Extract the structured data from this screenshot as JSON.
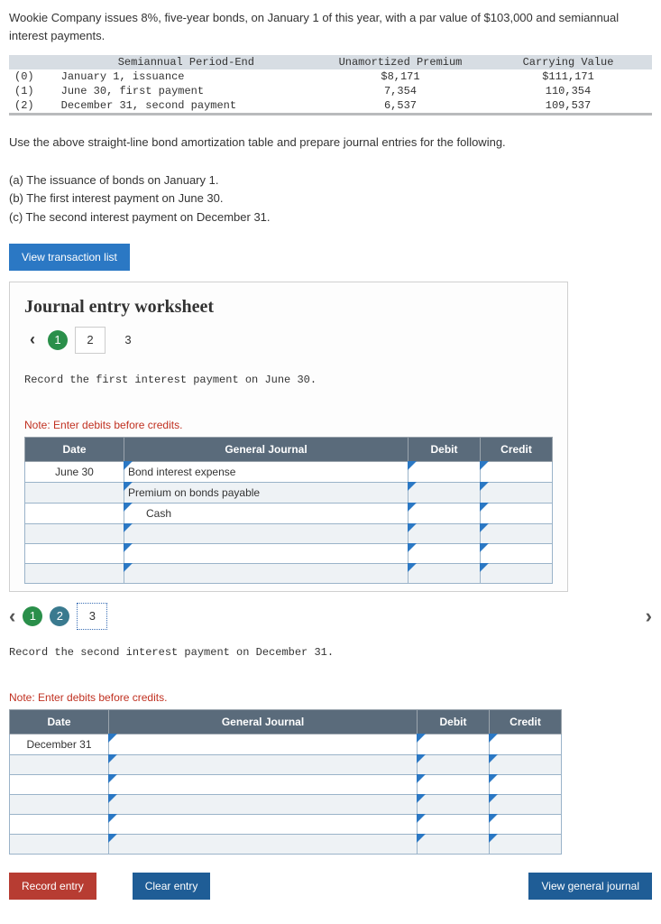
{
  "problem": {
    "text": "Wookie Company issues 8%, five-year bonds, on January 1 of this year, with a par value of $103,000 and semiannual interest payments."
  },
  "amort": {
    "headers": {
      "period": "Semiannual Period-End",
      "premium": "Unamortized Premium",
      "value": "Carrying Value"
    },
    "rows": [
      {
        "idx": "(0)",
        "period": "January 1, issuance",
        "premium": "$8,171",
        "value": "$111,171"
      },
      {
        "idx": "(1)",
        "period": "June 30, first payment",
        "premium": "7,354",
        "value": "110,354"
      },
      {
        "idx": "(2)",
        "period": "December 31, second payment",
        "premium": "6,537",
        "value": "109,537"
      }
    ]
  },
  "instructions": {
    "line1": "Use the above straight-line bond amortization table and prepare journal entries for the following.",
    "a": "(a) The issuance of bonds on January 1.",
    "b": "(b) The first interest payment on June 30.",
    "c": "(c) The second interest payment on December 31."
  },
  "buttons": {
    "view_list": "View transaction list",
    "record": "Record entry",
    "clear": "Clear entry",
    "view_journal": "View general journal"
  },
  "worksheet": {
    "title": "Journal entry worksheet",
    "tabs": [
      "1",
      "2",
      "3"
    ],
    "entry1": {
      "prompt": "Record the first interest payment on June 30.",
      "note": "Note: Enter debits before credits.",
      "headers": {
        "date": "Date",
        "gj": "General Journal",
        "debit": "Debit",
        "credit": "Credit"
      },
      "rows": [
        {
          "date": "June 30",
          "gj": "Bond interest expense"
        },
        {
          "date": "",
          "gj": "Premium on bonds payable"
        },
        {
          "date": "",
          "gj": "Cash"
        },
        {
          "date": "",
          "gj": ""
        },
        {
          "date": "",
          "gj": ""
        },
        {
          "date": "",
          "gj": ""
        }
      ]
    },
    "entry2": {
      "prompt": "Record the second interest payment on December 31.",
      "note": "Note: Enter debits before credits.",
      "headers": {
        "date": "Date",
        "gj": "General Journal",
        "debit": "Debit",
        "credit": "Credit"
      },
      "rows": [
        {
          "date": "December 31",
          "gj": ""
        },
        {
          "date": "",
          "gj": ""
        },
        {
          "date": "",
          "gj": ""
        },
        {
          "date": "",
          "gj": ""
        },
        {
          "date": "",
          "gj": ""
        },
        {
          "date": "",
          "gj": ""
        }
      ]
    }
  }
}
